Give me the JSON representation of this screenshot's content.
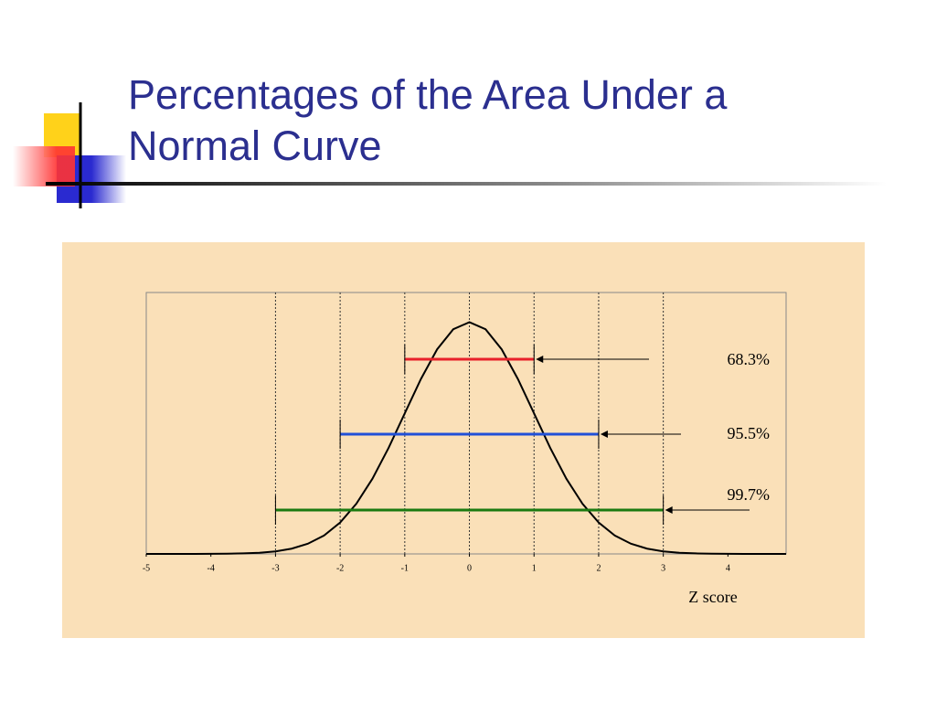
{
  "title": "Percentages of the Area Under a Normal Curve",
  "chart_data": {
    "type": "line",
    "x_label": "Z score",
    "x": [
      -5,
      -4.75,
      -4.5,
      -4.25,
      -4,
      -3.75,
      -3.5,
      -3.25,
      -3,
      -2.75,
      -2.5,
      -2.25,
      -2,
      -1.75,
      -1.5,
      -1.25,
      -1,
      -0.75,
      -0.5,
      -0.25,
      0,
      0.25,
      0.5,
      0.75,
      1,
      1.25,
      1.5,
      1.75,
      2,
      2.25,
      2.5,
      2.75,
      3,
      3.25,
      3.5,
      3.75,
      4,
      4.25,
      4.5,
      4.75
    ],
    "series": [
      {
        "color": "#000000",
        "values": [
          0,
          0,
          0,
          0,
          0.0001,
          0.0004,
          0.0009,
          0.002,
          0.0044,
          0.0091,
          0.0175,
          0.0317,
          0.054,
          0.0863,
          0.1295,
          0.1826,
          0.242,
          0.3011,
          0.3521,
          0.3867,
          0.3989,
          0.3867,
          0.3521,
          0.3011,
          0.242,
          0.1826,
          0.1295,
          0.0863,
          0.054,
          0.0317,
          0.0175,
          0.0091,
          0.0044,
          0.002,
          0.0009,
          0.0004,
          0.0001,
          0,
          0,
          0
        ]
      }
    ],
    "xlim": [
      -5,
      4.9
    ],
    "ylim": [
      0,
      0.45
    ],
    "xticks": [
      -5,
      -4,
      -3,
      -2,
      -1,
      0,
      1,
      2,
      3,
      4
    ],
    "vgrid": [
      -3,
      -2,
      -1,
      0,
      1,
      2,
      3
    ],
    "intervals": {
      "from": [
        -1,
        -2,
        -3
      ],
      "to": [
        1,
        2,
        3
      ],
      "colors": [
        "#e8202a",
        "#2050d8",
        "#1a7a10"
      ],
      "values": [
        68.3,
        95.5,
        99.7
      ],
      "value_labels": [
        "68.3%",
        "95.5%",
        "99.7%"
      ]
    }
  }
}
